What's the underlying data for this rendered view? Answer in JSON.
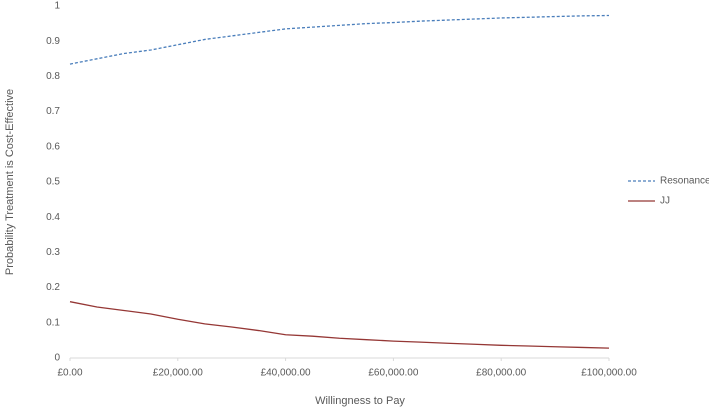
{
  "chart_data": {
    "type": "line",
    "x_label": "Willingness to Pay",
    "y_label": "Probability Treatment is Cost-Effective",
    "x": [
      0,
      5000,
      10000,
      15000,
      20000,
      25000,
      30000,
      35000,
      40000,
      45000,
      50000,
      55000,
      60000,
      65000,
      70000,
      75000,
      80000,
      85000,
      90000,
      95000,
      100000
    ],
    "series": [
      {
        "name": "Resonance",
        "color": "#4a7ebb",
        "style": "dashed",
        "values": [
          0.835,
          0.85,
          0.865,
          0.875,
          0.89,
          0.905,
          0.915,
          0.925,
          0.935,
          0.94,
          0.945,
          0.95,
          0.953,
          0.957,
          0.96,
          0.963,
          0.966,
          0.968,
          0.97,
          0.972,
          0.973
        ]
      },
      {
        "name": "JJ",
        "color": "#953735",
        "style": "solid",
        "values": [
          0.16,
          0.145,
          0.135,
          0.125,
          0.11,
          0.097,
          0.088,
          0.078,
          0.066,
          0.062,
          0.056,
          0.052,
          0.048,
          0.045,
          0.042,
          0.039,
          0.036,
          0.034,
          0.032,
          0.03,
          0.028
        ]
      }
    ],
    "xlim": [
      0,
      100000
    ],
    "xticks": [
      {
        "value": 0,
        "label": "£0.00"
      },
      {
        "value": 20000,
        "label": "£20,000.00"
      },
      {
        "value": 40000,
        "label": "£40,000.00"
      },
      {
        "value": 60000,
        "label": "£60,000.00"
      },
      {
        "value": 80000,
        "label": "£80,000.00"
      },
      {
        "value": 100000,
        "label": "£100,000.00"
      }
    ],
    "ylim": [
      0,
      1
    ],
    "yticks": [
      0,
      0.1,
      0.2,
      0.3,
      0.4,
      0.5,
      0.6,
      0.7,
      0.8,
      0.9,
      1
    ],
    "grid": false,
    "legend": "right"
  }
}
